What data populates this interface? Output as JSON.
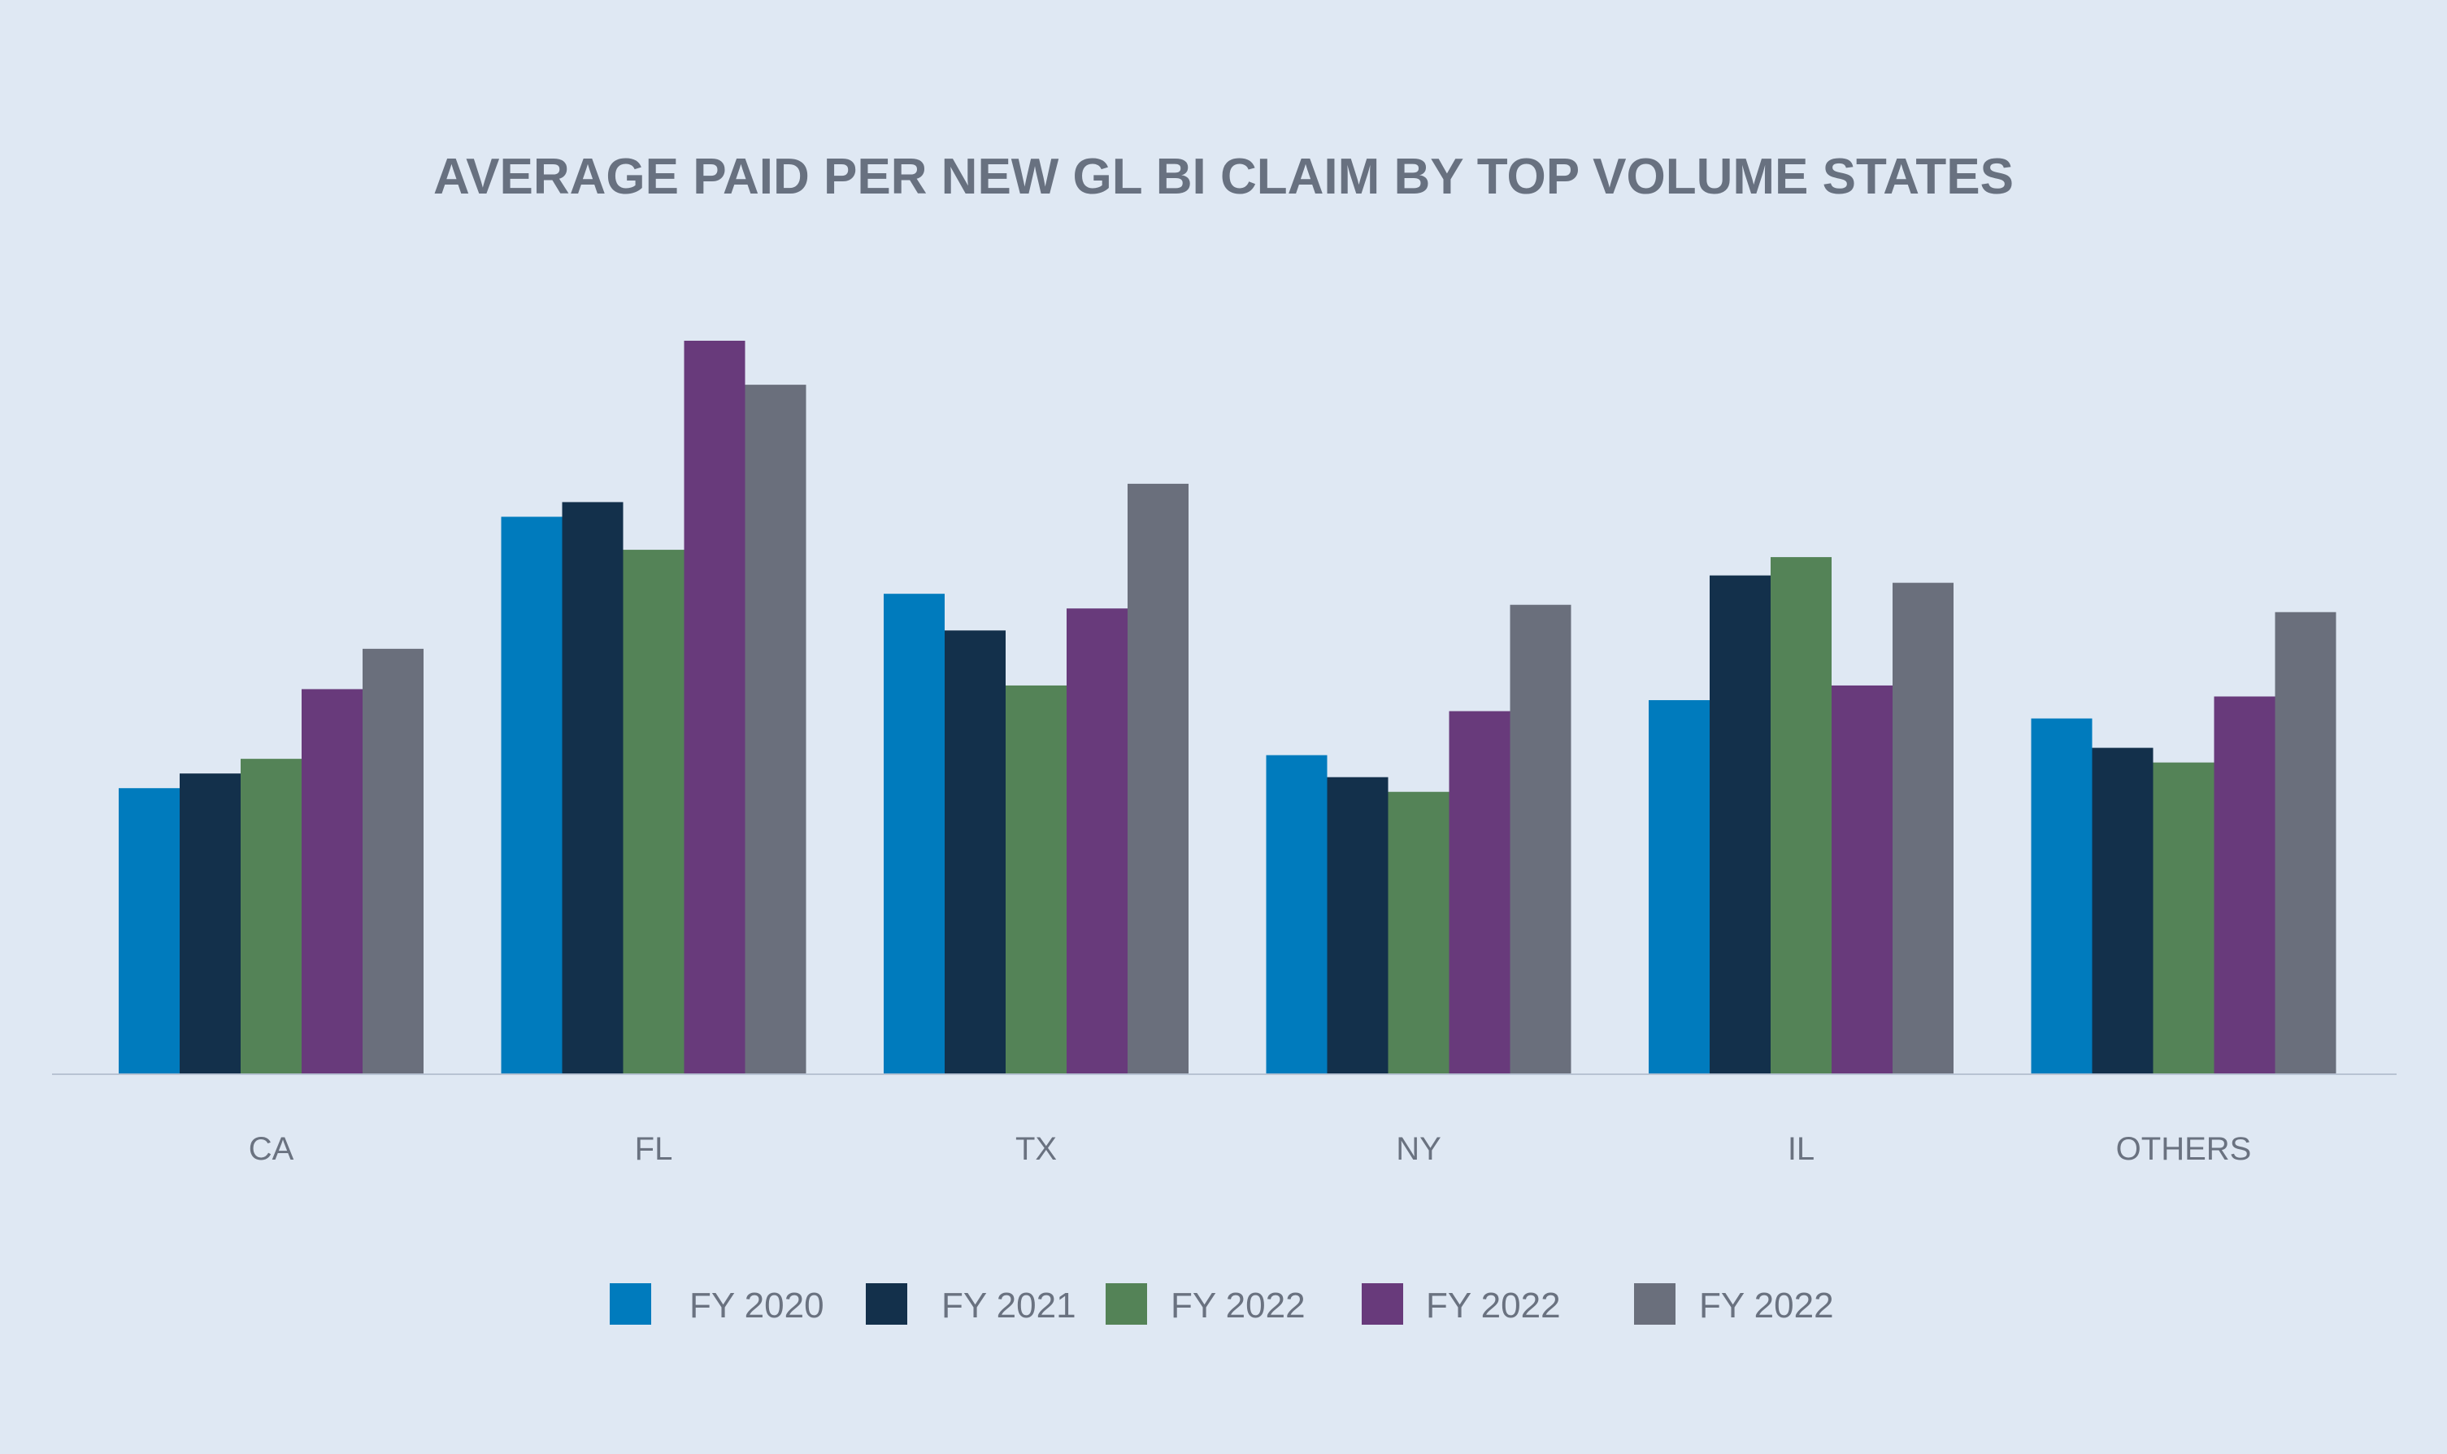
{
  "chart_data": {
    "type": "bar",
    "title": "AVERAGE PAID PER NEW GL BI CLAIM BY TOP VOLUME STATES",
    "categories": [
      "CA",
      "FL",
      "TX",
      "NY",
      "IL",
      "OTHERS"
    ],
    "ylim": [
      0,
      100
    ],
    "grid": false,
    "legend_position": "bottom",
    "series": [
      {
        "name": "FY 2020",
        "color": "#007bbd",
        "values": [
          39,
          76,
          65.5,
          43.5,
          51,
          48.5
        ]
      },
      {
        "name": "FY 2021",
        "color": "#13304b",
        "values": [
          41,
          78,
          60.5,
          40.5,
          68,
          44.5
        ]
      },
      {
        "name": "FY 2022",
        "color": "#548357",
        "values": [
          43,
          71.5,
          53,
          38.5,
          70.5,
          42.5
        ]
      },
      {
        "name": "FY 2022",
        "color": "#683a7b",
        "values": [
          52.5,
          100,
          63.5,
          49.5,
          53,
          51.5
        ]
      },
      {
        "name": "FY 2022",
        "color": "#6a6f7c",
        "values": [
          58,
          94,
          80.5,
          64,
          67,
          63
        ]
      }
    ]
  }
}
